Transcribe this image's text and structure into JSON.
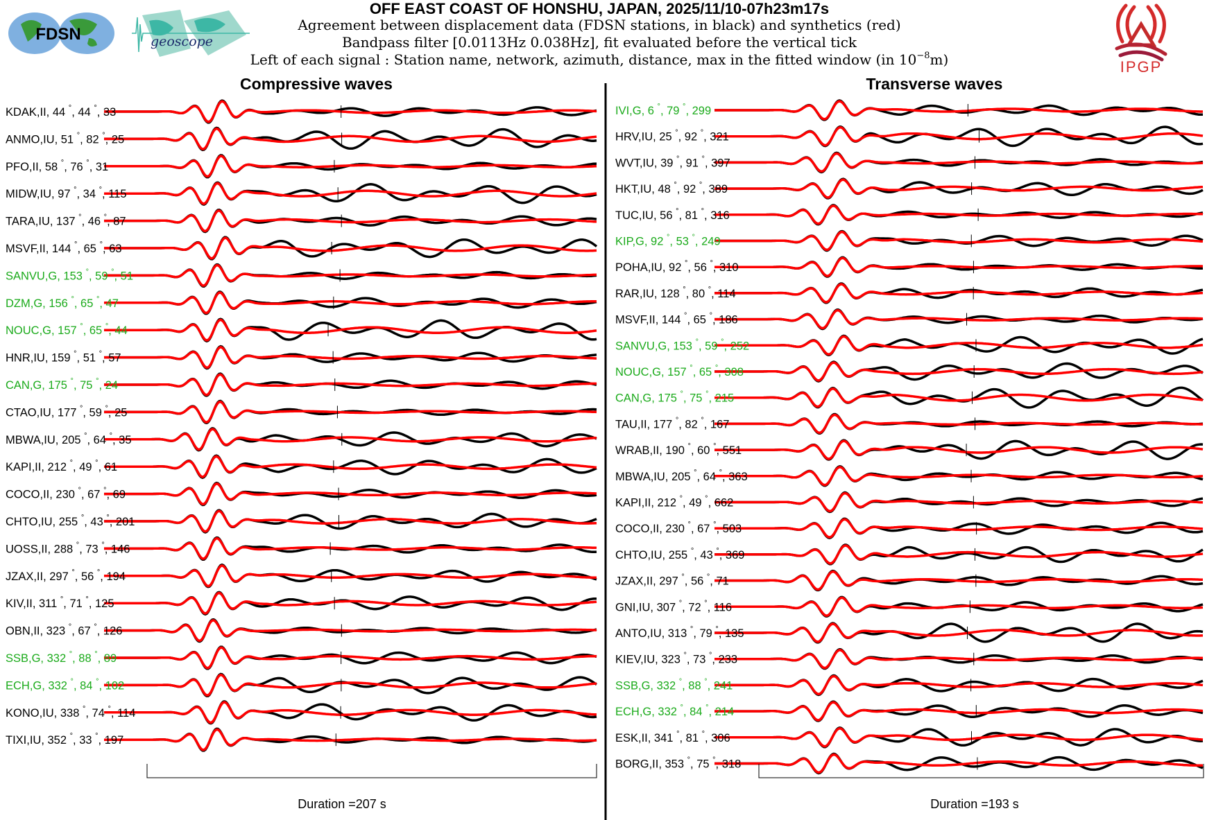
{
  "header": {
    "title": "OFF EAST COAST OF HONSHU, JAPAN, 2025/11/10-07h23m17s",
    "line1": "Agreement between displacement data (FDSN stations, in black) and synthetics (red)",
    "line2": "Bandpass filter [0.0113Hz 0.038Hz], fit evaluated before the vertical tick",
    "line3_prefix": "Left of each signal : Station name, network, azimuth, distance, max in the fitted window (in 10",
    "line3_exp": "−8",
    "line3_suffix": "m)"
  },
  "logos": {
    "fdsn": "FDSN",
    "geoscope": "geoscope",
    "ipgp": "IPGP"
  },
  "colors": {
    "data": "#000000",
    "synthetic": "#ff0000",
    "geoscope_label": "#1aaa1a",
    "other_label": "#000000"
  },
  "chart_data": [
    {
      "type": "line",
      "title": "Compressive waves",
      "duration_label": "Duration =207 s",
      "duration_s": 207,
      "series_legend": [
        "data (black)",
        "synthetics (red)"
      ],
      "stations": [
        {
          "name": "KDAK",
          "net": "II",
          "az": 44,
          "dist": 44,
          "max": 33
        },
        {
          "name": "ANMO",
          "net": "IU",
          "az": 51,
          "dist": 82,
          "max": 25
        },
        {
          "name": "PFO",
          "net": "II",
          "az": 58,
          "dist": 76,
          "max": 31
        },
        {
          "name": "MIDW",
          "net": "IU",
          "az": 97,
          "dist": 34,
          "max": 115
        },
        {
          "name": "TARA",
          "net": "IU",
          "az": 137,
          "dist": 46,
          "max": 87
        },
        {
          "name": "MSVF",
          "net": "II",
          "az": 144,
          "dist": 65,
          "max": 63
        },
        {
          "name": "SANVU",
          "net": "G",
          "az": 153,
          "dist": 59,
          "max": 51
        },
        {
          "name": "DZM",
          "net": "G",
          "az": 156,
          "dist": 65,
          "max": 47
        },
        {
          "name": "NOUC",
          "net": "G",
          "az": 157,
          "dist": 65,
          "max": 44
        },
        {
          "name": "HNR",
          "net": "IU",
          "az": 159,
          "dist": 51,
          "max": 57
        },
        {
          "name": "CAN",
          "net": "G",
          "az": 175,
          "dist": 75,
          "max": 24
        },
        {
          "name": "CTAO",
          "net": "IU",
          "az": 177,
          "dist": 59,
          "max": 25
        },
        {
          "name": "MBWA",
          "net": "IU",
          "az": 205,
          "dist": 64,
          "max": 35
        },
        {
          "name": "KAPI",
          "net": "II",
          "az": 212,
          "dist": 49,
          "max": 61
        },
        {
          "name": "COCO",
          "net": "II",
          "az": 230,
          "dist": 67,
          "max": 69
        },
        {
          "name": "CHTO",
          "net": "IU",
          "az": 255,
          "dist": 43,
          "max": 201
        },
        {
          "name": "UOSS",
          "net": "II",
          "az": 288,
          "dist": 73,
          "max": 146
        },
        {
          "name": "JZAX",
          "net": "II",
          "az": 297,
          "dist": 56,
          "max": 194
        },
        {
          "name": "KIV",
          "net": "II",
          "az": 311,
          "dist": 71,
          "max": 125
        },
        {
          "name": "OBN",
          "net": "II",
          "az": 323,
          "dist": 67,
          "max": 126
        },
        {
          "name": "SSB",
          "net": "G",
          "az": 332,
          "dist": 88,
          "max": 89
        },
        {
          "name": "ECH",
          "net": "G",
          "az": 332,
          "dist": 84,
          "max": 102
        },
        {
          "name": "KONO",
          "net": "IU",
          "az": 338,
          "dist": 74,
          "max": 114
        },
        {
          "name": "TIXI",
          "net": "IU",
          "az": 352,
          "dist": 33,
          "max": 197
        }
      ]
    },
    {
      "type": "line",
      "title": "Transverse waves",
      "duration_label": "Duration =193 s",
      "duration_s": 193,
      "series_legend": [
        "data (black)",
        "synthetics (red)"
      ],
      "stations": [
        {
          "name": "IVI",
          "net": "G",
          "az": 6,
          "dist": 79,
          "max": 299
        },
        {
          "name": "HRV",
          "net": "IU",
          "az": 25,
          "dist": 92,
          "max": 321
        },
        {
          "name": "WVT",
          "net": "IU",
          "az": 39,
          "dist": 91,
          "max": 397
        },
        {
          "name": "HKT",
          "net": "IU",
          "az": 48,
          "dist": 92,
          "max": 389
        },
        {
          "name": "TUC",
          "net": "IU",
          "az": 56,
          "dist": 81,
          "max": 316
        },
        {
          "name": "KIP",
          "net": "G",
          "az": 92,
          "dist": 53,
          "max": 249
        },
        {
          "name": "POHA",
          "net": "IU",
          "az": 92,
          "dist": 56,
          "max": 310
        },
        {
          "name": "RAR",
          "net": "IU",
          "az": 128,
          "dist": 80,
          "max": 114
        },
        {
          "name": "MSVF",
          "net": "II",
          "az": 144,
          "dist": 65,
          "max": 186
        },
        {
          "name": "SANVU",
          "net": "G",
          "az": 153,
          "dist": 59,
          "max": 252
        },
        {
          "name": "NOUC",
          "net": "G",
          "az": 157,
          "dist": 65,
          "max": 308
        },
        {
          "name": "CAN",
          "net": "G",
          "az": 175,
          "dist": 75,
          "max": 215
        },
        {
          "name": "TAU",
          "net": "II",
          "az": 177,
          "dist": 82,
          "max": 167
        },
        {
          "name": "WRAB",
          "net": "II",
          "az": 190,
          "dist": 60,
          "max": 551
        },
        {
          "name": "MBWA",
          "net": "IU",
          "az": 205,
          "dist": 64,
          "max": 363
        },
        {
          "name": "KAPI",
          "net": "II",
          "az": 212,
          "dist": 49,
          "max": 662
        },
        {
          "name": "COCO",
          "net": "II",
          "az": 230,
          "dist": 67,
          "max": 503
        },
        {
          "name": "CHTO",
          "net": "IU",
          "az": 255,
          "dist": 43,
          "max": 369
        },
        {
          "name": "JZAX",
          "net": "II",
          "az": 297,
          "dist": 56,
          "max": 71
        },
        {
          "name": "GNI",
          "net": "IU",
          "az": 307,
          "dist": 72,
          "max": 116
        },
        {
          "name": "ANTO",
          "net": "IU",
          "az": 313,
          "dist": 79,
          "max": 135
        },
        {
          "name": "KIEV",
          "net": "IU",
          "az": 323,
          "dist": 73,
          "max": 233
        },
        {
          "name": "SSB",
          "net": "G",
          "az": 332,
          "dist": 88,
          "max": 241
        },
        {
          "name": "ECH",
          "net": "G",
          "az": 332,
          "dist": 84,
          "max": 214
        },
        {
          "name": "ESK",
          "net": "II",
          "az": 341,
          "dist": 81,
          "max": 306
        },
        {
          "name": "BORG",
          "net": "II",
          "az": 353,
          "dist": 75,
          "max": 318
        }
      ]
    }
  ]
}
